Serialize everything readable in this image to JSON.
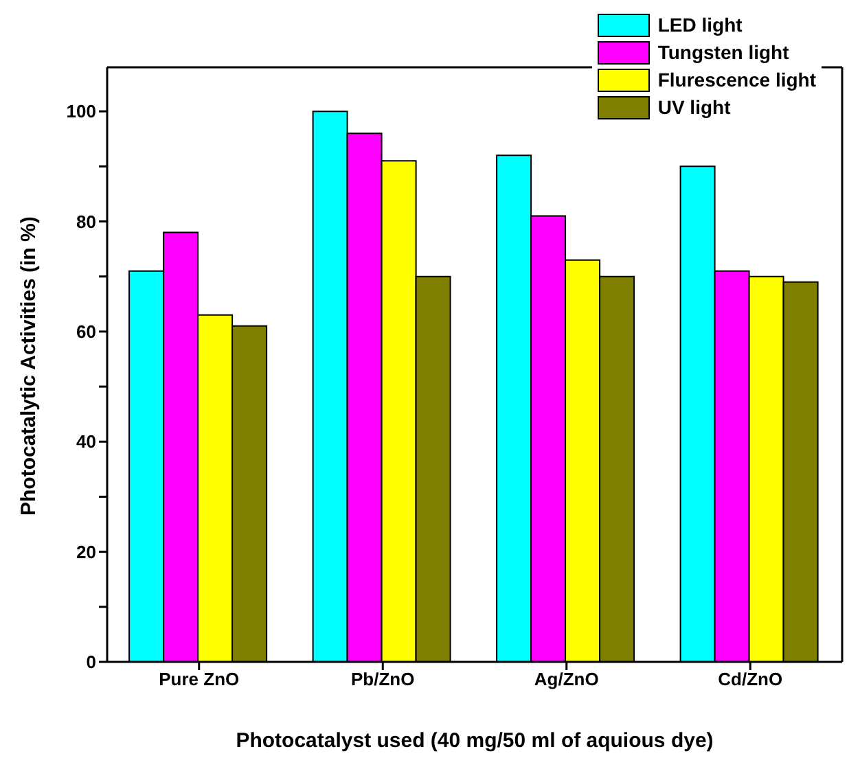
{
  "chart_data": {
    "type": "bar",
    "xlabel": "Photocatalyst used (40 mg/50 ml of aquious dye)",
    "ylabel": "Photocatalytic Activities (in %)",
    "categories": [
      "Pure ZnO",
      "Pb/ZnO",
      "Ag/ZnO",
      "Cd/ZnO"
    ],
    "series": [
      {
        "name": "LED light",
        "color": "#00ffff",
        "values": [
          71,
          100,
          92,
          90
        ]
      },
      {
        "name": "Tungsten light",
        "color": "#ff00ff",
        "values": [
          78,
          96,
          81,
          71
        ]
      },
      {
        "name": "Flurescence light",
        "color": "#ffff00",
        "values": [
          63,
          91,
          73,
          70
        ]
      },
      {
        "name": "UV light",
        "color": "#808000",
        "values": [
          61,
          70,
          70,
          69
        ]
      }
    ],
    "ylim": [
      0,
      108
    ],
    "yticks": [
      0,
      {
        "value": 10,
        "label": null
      },
      20,
      {
        "value": 30,
        "label": null
      },
      40,
      {
        "value": 50,
        "label": null
      },
      60,
      {
        "value": 70,
        "label": null
      },
      80,
      {
        "value": 90,
        "label": null
      },
      100
    ],
    "grid": false,
    "legend": "top right"
  }
}
